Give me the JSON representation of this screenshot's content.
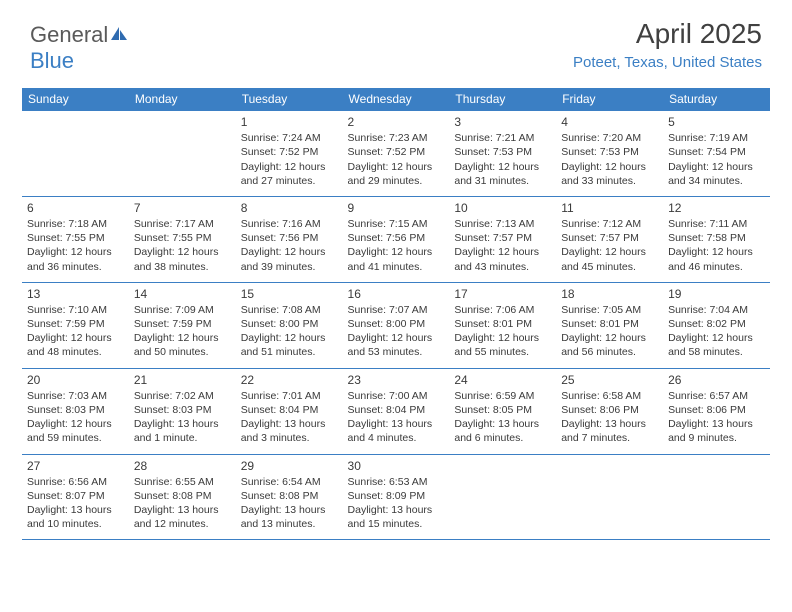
{
  "logo": {
    "text_gray": "General",
    "text_blue": "Blue"
  },
  "header": {
    "title": "April 2025",
    "location": "Poteet, Texas, United States"
  },
  "style": {
    "accent": "#3b7fc4",
    "text_color": "#3a3a3a",
    "bg": "#ffffff",
    "cell_font_size": 10.5,
    "header_font_size": 12,
    "title_font_size": 28
  },
  "calendar": {
    "weekdays": [
      "Sunday",
      "Monday",
      "Tuesday",
      "Wednesday",
      "Thursday",
      "Friday",
      "Saturday"
    ],
    "first_weekday_index": 2,
    "days": [
      {
        "n": 1,
        "sunrise": "7:24 AM",
        "sunset": "7:52 PM",
        "daylight": "12 hours and 27 minutes."
      },
      {
        "n": 2,
        "sunrise": "7:23 AM",
        "sunset": "7:52 PM",
        "daylight": "12 hours and 29 minutes."
      },
      {
        "n": 3,
        "sunrise": "7:21 AM",
        "sunset": "7:53 PM",
        "daylight": "12 hours and 31 minutes."
      },
      {
        "n": 4,
        "sunrise": "7:20 AM",
        "sunset": "7:53 PM",
        "daylight": "12 hours and 33 minutes."
      },
      {
        "n": 5,
        "sunrise": "7:19 AM",
        "sunset": "7:54 PM",
        "daylight": "12 hours and 34 minutes."
      },
      {
        "n": 6,
        "sunrise": "7:18 AM",
        "sunset": "7:55 PM",
        "daylight": "12 hours and 36 minutes."
      },
      {
        "n": 7,
        "sunrise": "7:17 AM",
        "sunset": "7:55 PM",
        "daylight": "12 hours and 38 minutes."
      },
      {
        "n": 8,
        "sunrise": "7:16 AM",
        "sunset": "7:56 PM",
        "daylight": "12 hours and 39 minutes."
      },
      {
        "n": 9,
        "sunrise": "7:15 AM",
        "sunset": "7:56 PM",
        "daylight": "12 hours and 41 minutes."
      },
      {
        "n": 10,
        "sunrise": "7:13 AM",
        "sunset": "7:57 PM",
        "daylight": "12 hours and 43 minutes."
      },
      {
        "n": 11,
        "sunrise": "7:12 AM",
        "sunset": "7:57 PM",
        "daylight": "12 hours and 45 minutes."
      },
      {
        "n": 12,
        "sunrise": "7:11 AM",
        "sunset": "7:58 PM",
        "daylight": "12 hours and 46 minutes."
      },
      {
        "n": 13,
        "sunrise": "7:10 AM",
        "sunset": "7:59 PM",
        "daylight": "12 hours and 48 minutes."
      },
      {
        "n": 14,
        "sunrise": "7:09 AM",
        "sunset": "7:59 PM",
        "daylight": "12 hours and 50 minutes."
      },
      {
        "n": 15,
        "sunrise": "7:08 AM",
        "sunset": "8:00 PM",
        "daylight": "12 hours and 51 minutes."
      },
      {
        "n": 16,
        "sunrise": "7:07 AM",
        "sunset": "8:00 PM",
        "daylight": "12 hours and 53 minutes."
      },
      {
        "n": 17,
        "sunrise": "7:06 AM",
        "sunset": "8:01 PM",
        "daylight": "12 hours and 55 minutes."
      },
      {
        "n": 18,
        "sunrise": "7:05 AM",
        "sunset": "8:01 PM",
        "daylight": "12 hours and 56 minutes."
      },
      {
        "n": 19,
        "sunrise": "7:04 AM",
        "sunset": "8:02 PM",
        "daylight": "12 hours and 58 minutes."
      },
      {
        "n": 20,
        "sunrise": "7:03 AM",
        "sunset": "8:03 PM",
        "daylight": "12 hours and 59 minutes."
      },
      {
        "n": 21,
        "sunrise": "7:02 AM",
        "sunset": "8:03 PM",
        "daylight": "13 hours and 1 minute."
      },
      {
        "n": 22,
        "sunrise": "7:01 AM",
        "sunset": "8:04 PM",
        "daylight": "13 hours and 3 minutes."
      },
      {
        "n": 23,
        "sunrise": "7:00 AM",
        "sunset": "8:04 PM",
        "daylight": "13 hours and 4 minutes."
      },
      {
        "n": 24,
        "sunrise": "6:59 AM",
        "sunset": "8:05 PM",
        "daylight": "13 hours and 6 minutes."
      },
      {
        "n": 25,
        "sunrise": "6:58 AM",
        "sunset": "8:06 PM",
        "daylight": "13 hours and 7 minutes."
      },
      {
        "n": 26,
        "sunrise": "6:57 AM",
        "sunset": "8:06 PM",
        "daylight": "13 hours and 9 minutes."
      },
      {
        "n": 27,
        "sunrise": "6:56 AM",
        "sunset": "8:07 PM",
        "daylight": "13 hours and 10 minutes."
      },
      {
        "n": 28,
        "sunrise": "6:55 AM",
        "sunset": "8:08 PM",
        "daylight": "13 hours and 12 minutes."
      },
      {
        "n": 29,
        "sunrise": "6:54 AM",
        "sunset": "8:08 PM",
        "daylight": "13 hours and 13 minutes."
      },
      {
        "n": 30,
        "sunrise": "6:53 AM",
        "sunset": "8:09 PM",
        "daylight": "13 hours and 15 minutes."
      }
    ],
    "labels": {
      "sunrise": "Sunrise:",
      "sunset": "Sunset:",
      "daylight": "Daylight:"
    }
  }
}
